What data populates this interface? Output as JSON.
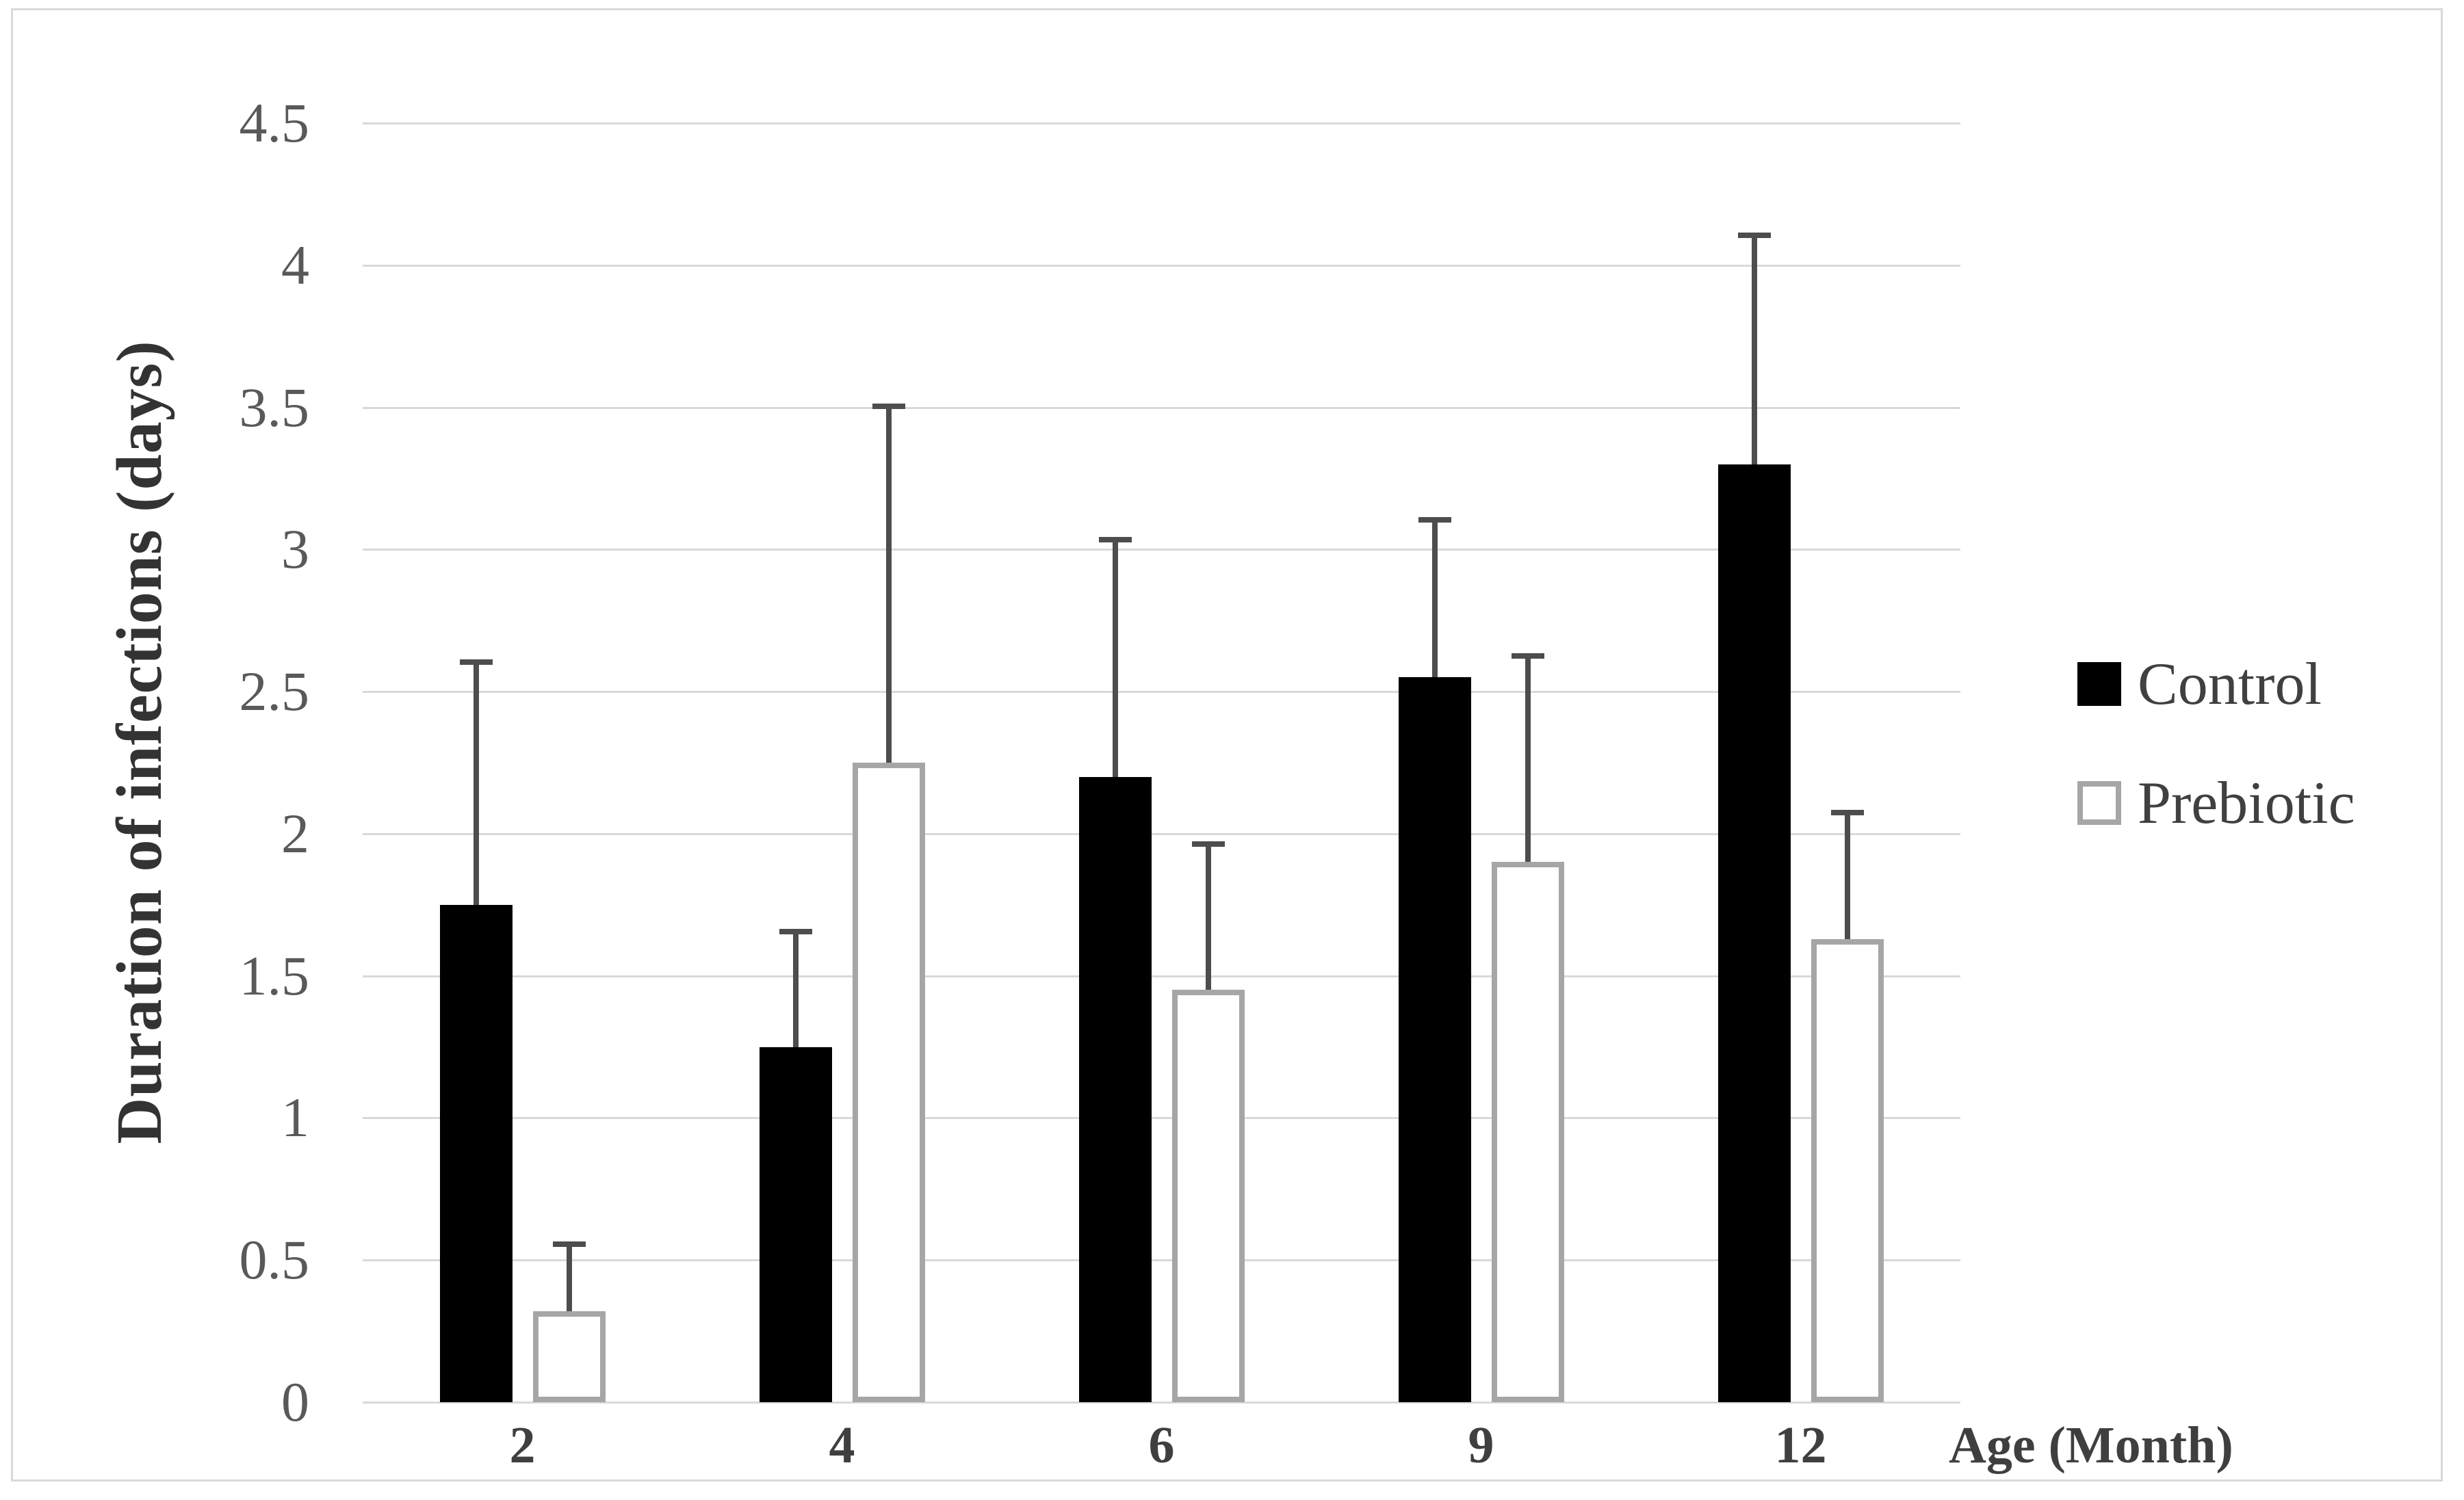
{
  "chart_data": {
    "type": "bar",
    "title": "",
    "categories": [
      "2",
      "4",
      "6",
      "9",
      "12"
    ],
    "series": [
      {
        "name": "Control",
        "values": [
          1.75,
          1.25,
          2.2,
          2.55,
          3.3
        ],
        "error_up": [
          0.85,
          0.4,
          0.83,
          0.55,
          0.8
        ],
        "fill": "#000000",
        "border": "#000000"
      },
      {
        "name": "Prebiotic",
        "values": [
          0.32,
          2.25,
          1.45,
          1.9,
          1.63
        ],
        "error_up": [
          0.23,
          1.25,
          0.51,
          0.72,
          0.44
        ],
        "fill": "#ffffff",
        "border": "#a6a6a6"
      }
    ],
    "xlabel": "Age (Month)",
    "ylabel": "Duration of infections (days)",
    "ylim": [
      0,
      4.5
    ],
    "ytick_step": 0.5,
    "yticks": [
      "0",
      "0.5",
      "1",
      "1.5",
      "2",
      "2.5",
      "3",
      "3.5",
      "4",
      "4.5"
    ],
    "grid": true,
    "legend_position": "right",
    "error_bars": "upward-only"
  },
  "colors": {
    "gridline": "#d9d9d9",
    "error_bar": "#4d4d4d",
    "y_tick_text": "#595959",
    "x_tick_text": "#3f3f3f",
    "axis_title_text": "#333333",
    "legend_text": "#404040",
    "figure_border": "#d9d9d9",
    "background": "#ffffff"
  },
  "legend": {
    "items": [
      {
        "label": "Control",
        "swatch": "filled-black-square"
      },
      {
        "label": "Prebiotic",
        "swatch": "white-square-gray-border"
      }
    ]
  }
}
